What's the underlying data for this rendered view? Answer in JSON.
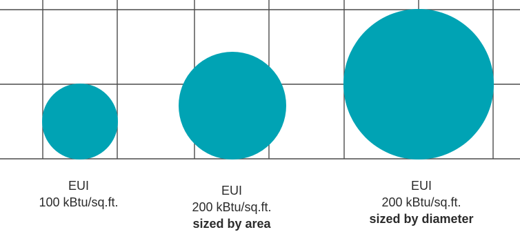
{
  "colors": {
    "circle_fill": "#00a3b4",
    "grid_line": "#4a4a4a",
    "text": "#2b2b2b",
    "background": "#ffffff"
  },
  "items": [
    {
      "label": "EUI",
      "value": "100 kBtu/sq.ft.",
      "note": ""
    },
    {
      "label": "EUI",
      "value": "200 kBtu/sq.ft.",
      "note": "sized by area"
    },
    {
      "label": "EUI",
      "value": "200 kBtu/sq.ft.",
      "note": "sized by diameter"
    }
  ]
}
